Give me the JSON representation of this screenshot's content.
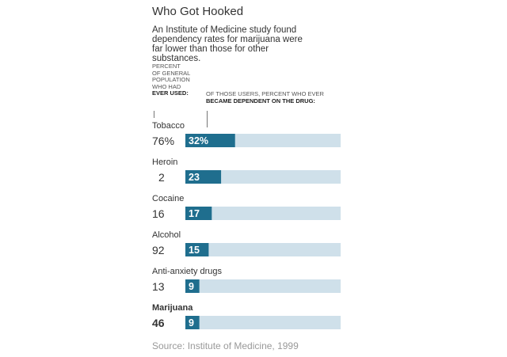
{
  "title": "Who Got Hooked",
  "intro": "An Institute of Medicine study found dependency rates for marijuana were far lower than those for other substances.",
  "header_left": {
    "line1": "PERCENT",
    "line2": "OF GENERAL",
    "line3": "POPULATION",
    "line4": "WHO HAD",
    "bold": "EVER USED:"
  },
  "header_right": {
    "line1": "OF THOSE USERS, PERCENT WHO EVER",
    "bold": "BECAME DEPENDENT ON THE DRUG:"
  },
  "source": "Source: Institute of Medicine, 1999",
  "colors": {
    "bar": "#1f6e8e",
    "track": "#cfe0ea",
    "text": "#333333"
  },
  "chart_data": {
    "type": "bar",
    "title": "Who Got Hooked",
    "categories": [
      "Tobacco",
      "Heroin",
      "Cocaine",
      "Alcohol",
      "Anti-anxiety drugs",
      "Marijuana"
    ],
    "ever_used_percent": [
      76,
      2,
      16,
      92,
      13,
      46
    ],
    "ever_used_labels": [
      "76%",
      "2",
      "16",
      "92",
      "13",
      "46"
    ],
    "series": [
      {
        "values": [
          32,
          23,
          17,
          15,
          9,
          9
        ],
        "labels": [
          "32%",
          "23",
          "17",
          "15",
          "9",
          "9"
        ]
      }
    ],
    "highlight": "Marijuana",
    "xlim": [
      0,
      100
    ]
  }
}
